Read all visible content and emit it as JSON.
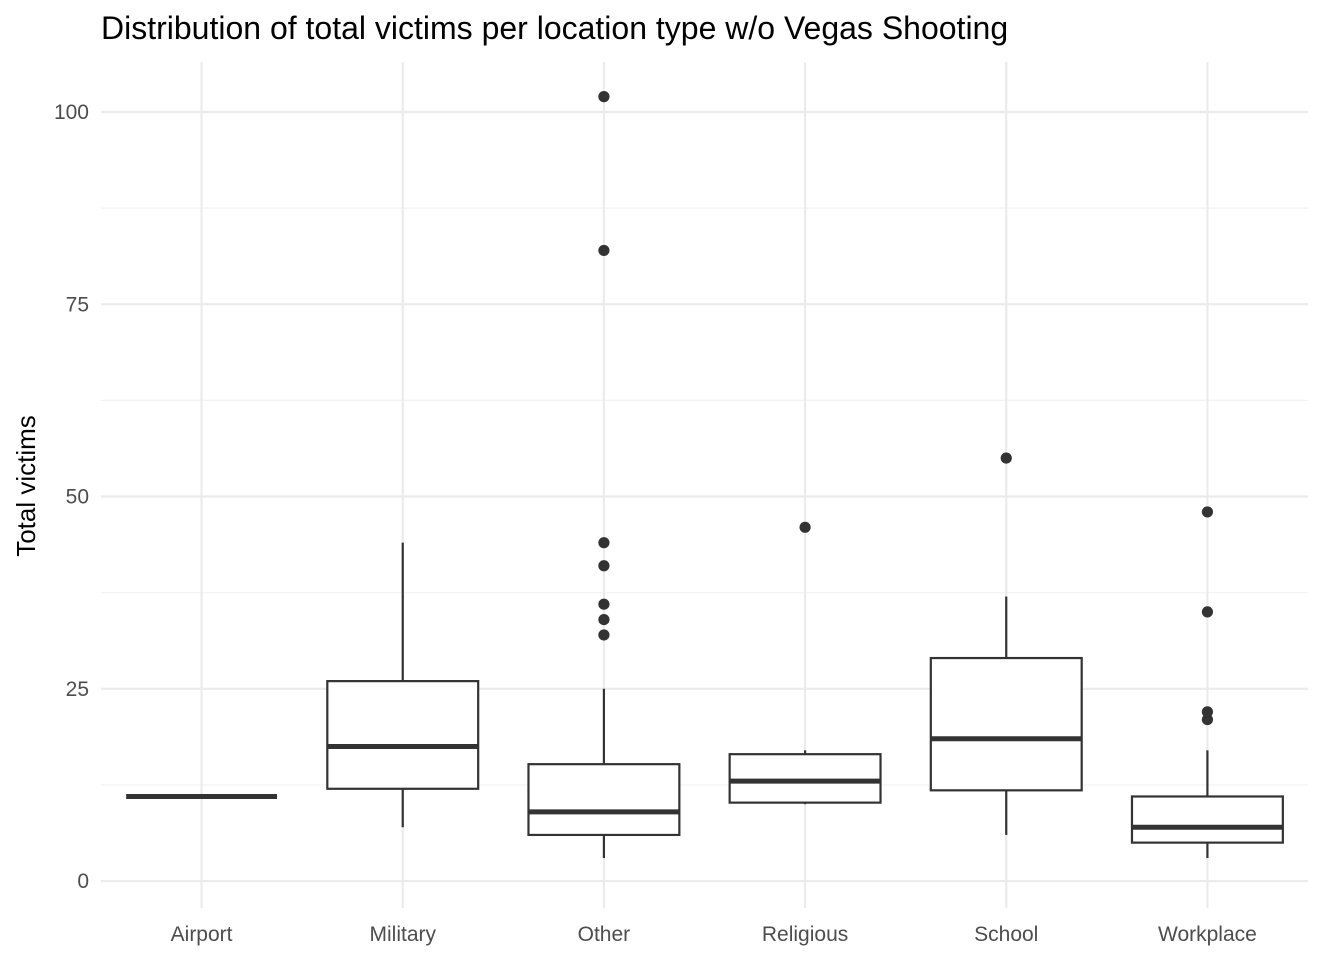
{
  "chart_data": {
    "type": "boxplot",
    "title": "Distribution of total victims per location type w/o Vegas Shooting",
    "xlabel": "",
    "ylabel": "Total victims",
    "ylim": [
      -3.5,
      106.5
    ],
    "y_ticks": [
      0,
      25,
      50,
      75,
      100
    ],
    "y_tick_labels": [
      "0",
      "25",
      "50",
      "75",
      "100"
    ],
    "grid": true,
    "legend": "none",
    "categories": [
      "Airport",
      "Military",
      "Other",
      "Religious",
      "School",
      "Workplace"
    ],
    "boxes": [
      {
        "category": "Airport",
        "min": 11,
        "q1": 11,
        "median": 11,
        "q3": 11,
        "max": 11,
        "outliers": []
      },
      {
        "category": "Military",
        "min": 7,
        "q1": 12,
        "median": 17.5,
        "q3": 26,
        "max": 44,
        "outliers": []
      },
      {
        "category": "Other",
        "min": 3,
        "q1": 6,
        "median": 9,
        "q3": 15.2,
        "max": 25,
        "outliers": [
          32,
          34,
          36,
          41,
          44,
          82,
          102
        ]
      },
      {
        "category": "Religious",
        "min": 10,
        "q1": 10.2,
        "median": 13,
        "q3": 16.5,
        "max": 17,
        "outliers": [
          46
        ]
      },
      {
        "category": "School",
        "min": 6,
        "q1": 11.8,
        "median": 18.5,
        "q3": 29,
        "max": 37,
        "outliers": [
          55
        ]
      },
      {
        "category": "Workplace",
        "min": 3,
        "q1": 5,
        "median": 7,
        "q3": 11,
        "max": 17,
        "outliers": [
          21,
          22,
          35,
          48
        ]
      }
    ],
    "colors": {
      "box_stroke": "#333333",
      "box_fill": "#ffffff",
      "grid_major": "#ebebeb",
      "grid_minor": "#f2f2f2",
      "tick_text": "#4d4d4d",
      "title_text": "#000000"
    }
  }
}
